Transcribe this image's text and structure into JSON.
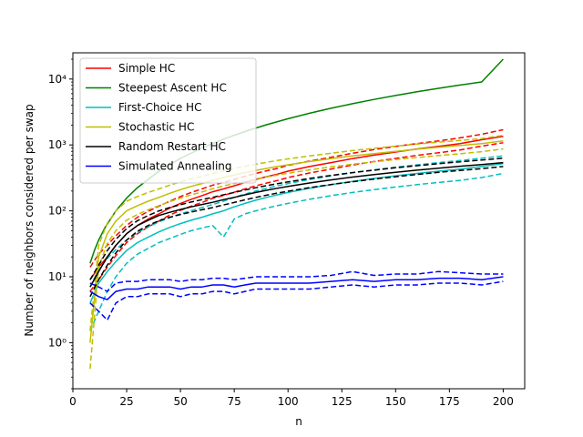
{
  "chart_data": {
    "type": "line",
    "xlabel": "n",
    "ylabel": "Number of neighbors considered per swap",
    "xlim": [
      0,
      210
    ],
    "ylim": [
      0.2,
      25000
    ],
    "yscale": "log",
    "xticks": [
      0,
      25,
      50,
      75,
      100,
      125,
      150,
      175,
      200
    ],
    "yticks": [
      {
        "value": 1,
        "label": "10⁰"
      },
      {
        "value": 10,
        "label": "10¹"
      },
      {
        "value": 100,
        "label": "10²"
      },
      {
        "value": 1000,
        "label": "10³"
      },
      {
        "value": 10000,
        "label": "10⁴"
      }
    ],
    "grid": false,
    "legend_position": "upper-left",
    "bands_note": "dashed lines show upper and lower bounds around each solid series",
    "series": [
      {
        "name": "Simple HC",
        "color": "#ff0000",
        "x": [
          8,
          12,
          16,
          20,
          25,
          30,
          35,
          40,
          45,
          50,
          55,
          60,
          65,
          70,
          75,
          80,
          85,
          90,
          95,
          100,
          110,
          120,
          130,
          140,
          150,
          160,
          170,
          180,
          190,
          200
        ],
        "y": [
          9,
          14,
          20,
          30,
          45,
          60,
          75,
          90,
          110,
          130,
          150,
          170,
          195,
          215,
          240,
          270,
          300,
          330,
          360,
          400,
          470,
          540,
          620,
          700,
          780,
          870,
          950,
          1050,
          1200,
          1350
        ],
        "upper": [
          14,
          22,
          30,
          42,
          60,
          80,
          98,
          118,
          140,
          165,
          190,
          215,
          245,
          270,
          300,
          335,
          370,
          405,
          440,
          490,
          570,
          650,
          750,
          850,
          950,
          1050,
          1150,
          1280,
          1450,
          1700
        ],
        "lower": [
          6,
          9,
          14,
          21,
          33,
          45,
          57,
          70,
          86,
          102,
          118,
          134,
          155,
          172,
          192,
          215,
          240,
          264,
          288,
          320,
          375,
          430,
          495,
          560,
          625,
          695,
          760,
          840,
          960,
          1080
        ]
      },
      {
        "name": "Steepest Ascent HC",
        "color": "#008000",
        "x": [
          8,
          10,
          12,
          15,
          20,
          25,
          30,
          40,
          50,
          60,
          70,
          80,
          90,
          100,
          110,
          120,
          130,
          140,
          150,
          160,
          170,
          180,
          190,
          200
        ],
        "y": [
          16,
          25,
          36,
          56,
          100,
          156,
          225,
          400,
          625,
          900,
          1225,
          1600,
          2025,
          2500,
          3025,
          3600,
          4225,
          4900,
          5625,
          6400,
          7225,
          8100,
          9025,
          20000
        ],
        "upper": [],
        "lower": []
      },
      {
        "name": "First-Choice HC",
        "color": "#00bfbf",
        "x": [
          8,
          12,
          16,
          20,
          25,
          30,
          35,
          40,
          45,
          50,
          55,
          60,
          65,
          70,
          75,
          80,
          85,
          90,
          95,
          100,
          110,
          120,
          130,
          140,
          150,
          160,
          170,
          180,
          190,
          200
        ],
        "y": [
          4,
          8,
          12,
          17,
          25,
          33,
          40,
          48,
          56,
          64,
          72,
          80,
          90,
          100,
          115,
          130,
          145,
          160,
          175,
          190,
          220,
          250,
          280,
          310,
          340,
          370,
          400,
          430,
          470,
          520
        ],
        "upper": [
          7,
          13,
          19,
          26,
          36,
          47,
          57,
          68,
          79,
          90,
          101,
          112,
          125,
          140,
          160,
          180,
          200,
          220,
          240,
          260,
          300,
          340,
          380,
          420,
          460,
          500,
          540,
          580,
          630,
          680
        ],
        "lower": [
          1.5,
          3,
          6,
          10,
          16,
          22,
          27,
          33,
          38,
          44,
          50,
          55,
          60,
          40,
          75,
          90,
          100,
          110,
          120,
          130,
          150,
          170,
          190,
          210,
          230,
          250,
          270,
          290,
          320,
          370
        ]
      },
      {
        "name": "Stochastic HC",
        "color": "#bfbf00",
        "x": [
          8,
          12,
          16,
          20,
          25,
          30,
          35,
          40,
          45,
          50,
          55,
          60,
          65,
          70,
          75,
          80,
          85,
          90,
          95,
          100,
          110,
          120,
          130,
          140,
          150,
          160,
          170,
          180,
          190,
          200
        ],
        "y": [
          1,
          20,
          45,
          70,
          100,
          120,
          140,
          160,
          185,
          210,
          235,
          260,
          290,
          320,
          350,
          380,
          410,
          440,
          470,
          500,
          560,
          620,
          680,
          740,
          800,
          860,
          920,
          980,
          1050,
          1150
        ],
        "upper": [
          1.5,
          30,
          65,
          100,
          140,
          165,
          190,
          215,
          245,
          275,
          305,
          335,
          370,
          405,
          440,
          475,
          510,
          545,
          580,
          615,
          680,
          750,
          820,
          890,
          960,
          1030,
          1100,
          1170,
          1250,
          1400
        ],
        "lower": [
          0.4,
          14,
          32,
          50,
          72,
          88,
          104,
          120,
          138,
          156,
          175,
          194,
          216,
          238,
          260,
          282,
          305,
          327,
          349,
          372,
          418,
          464,
          510,
          555,
          600,
          645,
          690,
          735,
          790,
          870
        ]
      },
      {
        "name": "Random Restart HC",
        "color": "#000000",
        "x": [
          8,
          12,
          16,
          20,
          25,
          30,
          35,
          40,
          45,
          50,
          55,
          60,
          65,
          70,
          75,
          80,
          85,
          90,
          95,
          100,
          110,
          120,
          130,
          140,
          150,
          160,
          170,
          180,
          190,
          200
        ],
        "y": [
          7,
          12,
          20,
          30,
          45,
          60,
          72,
          85,
          95,
          105,
          115,
          125,
          135,
          148,
          160,
          175,
          190,
          205,
          220,
          235,
          265,
          295,
          325,
          355,
          385,
          415,
          445,
          475,
          505,
          540
        ],
        "upper": [
          9,
          15,
          25,
          37,
          54,
          71,
          85,
          100,
          112,
          124,
          136,
          148,
          160,
          175,
          190,
          207,
          224,
          241,
          258,
          275,
          310,
          345,
          380,
          415,
          450,
          485,
          520,
          555,
          590,
          630
        ],
        "lower": [
          5,
          9,
          15,
          23,
          36,
          49,
          60,
          71,
          80,
          88,
          96,
          104,
          112,
          123,
          134,
          147,
          160,
          173,
          186,
          199,
          225,
          251,
          277,
          303,
          330,
          357,
          384,
          411,
          438,
          470
        ]
      },
      {
        "name": "Simulated Annealing",
        "color": "#0000ff",
        "x": [
          8,
          12,
          16,
          20,
          25,
          30,
          35,
          40,
          45,
          50,
          55,
          60,
          65,
          70,
          75,
          80,
          85,
          90,
          95,
          100,
          110,
          120,
          130,
          140,
          150,
          160,
          170,
          180,
          190,
          200
        ],
        "y": [
          6,
          5,
          4.5,
          6,
          6.5,
          6.5,
          7,
          7,
          7,
          6.5,
          7,
          7,
          7.5,
          7.5,
          7,
          7.5,
          8,
          8,
          8,
          8,
          8,
          8.5,
          9,
          8.5,
          9,
          9,
          9.5,
          9.5,
          9,
          10
        ],
        "upper": [
          8,
          7,
          6,
          8,
          8.5,
          8.5,
          9,
          9,
          9,
          8.5,
          9,
          9,
          9.5,
          9.5,
          9,
          9.5,
          10,
          10,
          10,
          10,
          10,
          10.5,
          12,
          10.5,
          11,
          11,
          12,
          11.5,
          11,
          11
        ],
        "lower": [
          4,
          3,
          2.2,
          4,
          5,
          5,
          5.5,
          5.5,
          5.5,
          5,
          5.5,
          5.5,
          6,
          6,
          5.5,
          6,
          6.5,
          6.5,
          6.5,
          6.5,
          6.5,
          7,
          7.5,
          7,
          7.5,
          7.5,
          8,
          8,
          7.5,
          8.5
        ]
      }
    ]
  }
}
